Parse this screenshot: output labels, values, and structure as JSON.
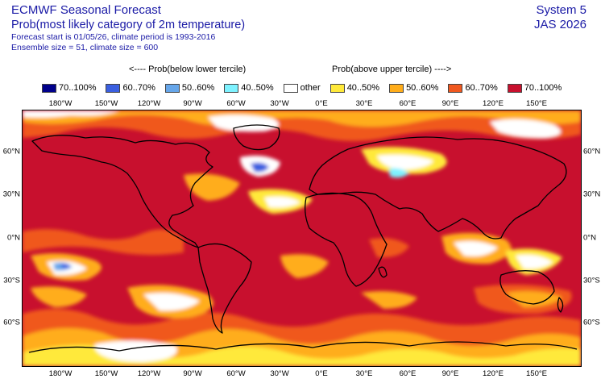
{
  "header": {
    "line1": "ECMWF Seasonal Forecast",
    "line2": "Prob(most likely category of 2m temperature)",
    "line3": "Forecast start is 01/05/26, climate period is 1993-2016",
    "line4": "Ensemble size = 51, climate size = 600",
    "system": "System 5",
    "period": "JAS 2026"
  },
  "legend": {
    "below_heading": "<---- Prob(below lower tercile)",
    "above_heading": "Prob(above upper tercile) ---->",
    "items": [
      {
        "label": "70..100%",
        "color": "#00008b"
      },
      {
        "label": "60..70%",
        "color": "#3a5fe0"
      },
      {
        "label": "50..60%",
        "color": "#66a6ea"
      },
      {
        "label": "40..50%",
        "color": "#7ef2ff"
      },
      {
        "label": "other",
        "color": "#ffffff"
      },
      {
        "label": "40..50%",
        "color": "#ffe93a"
      },
      {
        "label": "50..60%",
        "color": "#ffad1a"
      },
      {
        "label": "60..70%",
        "color": "#f0581f"
      },
      {
        "label": "70..100%",
        "color": "#c8102e"
      }
    ]
  },
  "longitude_labels": [
    "180°W",
    "150°W",
    "120°W",
    "90°W",
    "60°W",
    "30°W",
    "0°E",
    "30°E",
    "60°E",
    "90°E",
    "120°E",
    "150°E"
  ],
  "latitude_labels": [
    "60°N",
    "30°N",
    "0°N",
    "30°S",
    "60°S"
  ]
}
